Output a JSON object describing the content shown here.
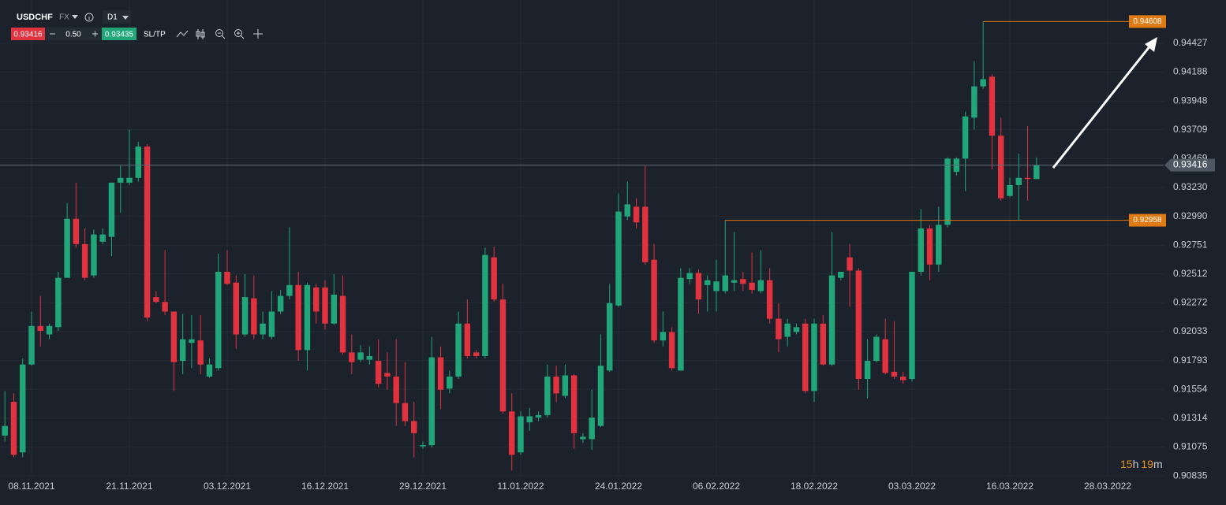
{
  "header": {
    "symbol": "USDCHF",
    "market": "FX",
    "timeframe": "D1",
    "bid": 0.93416,
    "spread": "0.50",
    "ask": 0.93435,
    "sltp": "SL/TP"
  },
  "countdown": [
    "15",
    "h",
    "19",
    "m"
  ],
  "chart_data": {
    "type": "candlestick",
    "up_color": "#21a67a",
    "down_color": "#e0323f",
    "grid": true,
    "x": [
      0,
      1,
      2,
      3,
      4,
      5,
      6,
      7,
      8,
      9,
      10,
      11,
      12,
      13,
      14,
      15,
      16,
      17,
      18,
      19,
      20,
      21,
      22,
      23,
      24,
      25,
      26,
      27,
      28,
      29,
      30,
      31,
      32,
      33,
      34,
      35,
      36,
      37,
      38,
      39,
      40,
      41,
      42,
      43,
      44,
      45,
      46,
      47,
      48,
      49,
      50,
      51,
      52,
      53,
      54,
      55,
      56,
      57,
      58,
      59,
      60,
      61,
      62,
      63,
      64,
      65,
      66,
      67,
      68,
      69,
      70,
      71,
      72,
      73,
      74,
      75,
      76,
      77,
      78,
      79,
      80,
      81,
      82,
      83,
      84,
      85,
      86,
      87,
      88,
      89,
      90,
      91,
      92,
      93,
      94,
      95,
      96,
      97,
      98,
      99,
      100,
      101,
      102,
      103,
      104,
      105,
      106,
      107,
      108,
      109,
      110,
      111,
      112,
      113,
      114,
      115,
      116
    ],
    "open": [
      0.9117,
      0.9145,
      0.9103,
      0.9176,
      0.9208,
      0.9201,
      0.9207,
      0.9248,
      0.9297,
      0.9276,
      0.925,
      0.9278,
      0.9282,
      0.9327,
      0.9327,
      0.9331,
      0.9357,
      0.9232,
      0.9228,
      0.922,
      0.9179,
      0.9194,
      0.9196,
      0.9166,
      0.9173,
      0.9253,
      0.9244,
      0.9201,
      0.9231,
      0.9201,
      0.9199,
      0.922,
      0.9233,
      0.9242,
      0.9188,
      0.924,
      0.924,
      0.921,
      0.9233,
      0.9186,
      0.918,
      0.918,
      0.9179,
      0.9169,
      0.9166,
      0.9144,
      0.9129,
      0.9108,
      0.9109,
      0.9182,
      0.9156,
      0.9166,
      0.921,
      0.9186,
      0.9183,
      0.9265,
      0.923,
      0.9137,
      0.9103,
      0.9128,
      0.9132,
      0.9134,
      0.9166,
      0.915,
      0.9167,
      0.9114,
      0.9114,
      0.9125,
      0.9171,
      0.9225,
      0.9299,
      0.9307,
      0.9307,
      0.9263,
      0.9196,
      0.9203,
      0.9171,
      0.9247,
      0.9252,
      0.9242,
      0.9237,
      0.9237,
      0.9244,
      0.9247,
      0.9244,
      0.9237,
      0.9246,
      0.9214,
      0.9199,
      0.9203,
      0.921,
      0.9154,
      0.921,
      0.9176,
      0.9248,
      0.9265,
      0.9254,
      0.9164,
      0.9179,
      0.9197,
      0.917,
      0.9166,
      0.9164,
      0.9253,
      0.9289,
      0.9259,
      0.9292,
      0.9336,
      0.9347,
      0.9381,
      0.9407,
      0.9415,
      0.9366,
      0.9316,
      0.9325,
      0.9331,
      0.933
    ],
    "high": [
      0.9154,
      0.9152,
      0.9181,
      0.922,
      0.9233,
      0.921,
      0.9253,
      0.931,
      0.9327,
      0.9289,
      0.9288,
      0.9289,
      0.9327,
      0.9341,
      0.9371,
      0.9361,
      0.9359,
      0.9237,
      0.9271,
      0.922,
      0.9218,
      0.9217,
      0.9217,
      0.9181,
      0.9268,
      0.9271,
      0.925,
      0.9251,
      0.925,
      0.922,
      0.9237,
      0.9238,
      0.929,
      0.9253,
      0.9244,
      0.9243,
      0.9246,
      0.9251,
      0.925,
      0.9201,
      0.9192,
      0.9191,
      0.9197,
      0.9186,
      0.9197,
      0.9178,
      0.9145,
      0.9112,
      0.9199,
      0.9191,
      0.9171,
      0.922,
      0.923,
      0.9188,
      0.9273,
      0.9274,
      0.9243,
      0.9152,
      0.9137,
      0.914,
      0.9137,
      0.9176,
      0.9175,
      0.9176,
      0.9168,
      0.9119,
      0.9155,
      0.9201,
      0.9243,
      0.9318,
      0.9328,
      0.9314,
      0.9341,
      0.9276,
      0.922,
      0.9207,
      0.9256,
      0.9256,
      0.9255,
      0.925,
      0.9263,
      0.92958,
      0.9286,
      0.9253,
      0.9269,
      0.9271,
      0.9256,
      0.9227,
      0.9214,
      0.921,
      0.9214,
      0.9214,
      0.9217,
      0.9286,
      0.9253,
      0.9276,
      0.9256,
      0.9197,
      0.9201,
      0.9214,
      0.9212,
      0.917,
      0.9253,
      0.9305,
      0.9292,
      0.9307,
      0.9348,
      0.9348,
      0.9386,
      0.9428,
      0.94608,
      0.9417,
      0.9381,
      0.9331,
      0.9351,
      0.9374,
      0.9348
    ],
    "low": [
      0.9112,
      0.9099,
      0.9099,
      0.9175,
      0.9191,
      0.9197,
      0.9204,
      0.9248,
      0.9273,
      0.9246,
      0.9248,
      0.9276,
      0.9266,
      0.9302,
      0.9325,
      0.9328,
      0.9212,
      0.9227,
      0.9217,
      0.9154,
      0.9168,
      0.9173,
      0.9168,
      0.9165,
      0.9171,
      0.9242,
      0.9189,
      0.9199,
      0.9197,
      0.9197,
      0.9197,
      0.9218,
      0.923,
      0.9179,
      0.9171,
      0.921,
      0.9205,
      0.9209,
      0.9184,
      0.9168,
      0.9178,
      0.9176,
      0.9157,
      0.9155,
      0.9125,
      0.9125,
      0.9099,
      0.9106,
      0.9107,
      0.9139,
      0.9152,
      0.9164,
      0.9181,
      0.9181,
      0.9181,
      0.9228,
      0.9135,
      0.9088,
      0.9101,
      0.9121,
      0.9129,
      0.9132,
      0.9145,
      0.9148,
      0.9106,
      0.9111,
      0.9105,
      0.9124,
      0.917,
      0.9224,
      0.9296,
      0.9289,
      0.9259,
      0.9194,
      0.9191,
      0.9171,
      0.9171,
      0.9243,
      0.9218,
      0.922,
      0.922,
      0.9235,
      0.9237,
      0.9237,
      0.9235,
      0.9235,
      0.921,
      0.9186,
      0.9191,
      0.9201,
      0.9152,
      0.9145,
      0.9175,
      0.9175,
      0.9246,
      0.9224,
      0.9155,
      0.9148,
      0.9178,
      0.9168,
      0.9164,
      0.916,
      0.9162,
      0.925,
      0.9246,
      0.9253,
      0.929,
      0.9333,
      0.932,
      0.9371,
      0.9405,
      0.9338,
      0.9312,
      0.9315,
      0.92958,
      0.9312,
      0.933
    ],
    "close": [
      0.9125,
      0.9101,
      0.9176,
      0.9208,
      0.9204,
      0.9208,
      0.9248,
      0.9297,
      0.9276,
      0.9248,
      0.9284,
      0.9284,
      0.9327,
      0.9331,
      0.9331,
      0.9357,
      0.9215,
      0.9228,
      0.922,
      0.9178,
      0.9197,
      0.9197,
      0.9176,
      0.9176,
      0.9253,
      0.9243,
      0.9201,
      0.9232,
      0.9201,
      0.921,
      0.922,
      0.9233,
      0.9242,
      0.9188,
      0.9242,
      0.922,
      0.921,
      0.9234,
      0.9186,
      0.9178,
      0.9186,
      0.9183,
      0.916,
      0.9166,
      0.9144,
      0.9129,
      0.9119,
      0.9109,
      0.9182,
      0.9155,
      0.9166,
      0.921,
      0.9183,
      0.9183,
      0.9267,
      0.923,
      0.9137,
      0.9101,
      0.9133,
      0.9133,
      0.9134,
      0.9166,
      0.9152,
      0.9167,
      0.9119,
      0.9116,
      0.9132,
      0.9175,
      0.9227,
      0.9303,
      0.9309,
      0.9294,
      0.9261,
      0.9196,
      0.9203,
      0.9173,
      0.9248,
      0.9252,
      0.923,
      0.9246,
      0.9245,
      0.925,
      0.9246,
      0.9243,
      0.9238,
      0.9246,
      0.9214,
      0.9197,
      0.921,
      0.9207,
      0.9154,
      0.921,
      0.9176,
      0.925,
      0.9253,
      0.9254,
      0.9164,
      0.9179,
      0.9199,
      0.9169,
      0.9166,
      0.9163,
      0.9253,
      0.9289,
      0.9259,
      0.9292,
      0.9347,
      0.9347,
      0.9382,
      0.9407,
      0.9413,
      0.9366,
      0.9314,
      0.9325,
      0.9331,
      0.933,
      0.93416
    ],
    "xlim": [
      -0.55,
      130.3
    ],
    "xticks": [
      {
        "value": 3,
        "label": "08.11.2021"
      },
      {
        "value": 14,
        "label": "21.11.2021"
      },
      {
        "value": 25,
        "label": "03.12.2021"
      },
      {
        "value": 36,
        "label": "16.12.2021"
      },
      {
        "value": 47,
        "label": "29.12.2021"
      },
      {
        "value": 58,
        "label": "11.01.2022"
      },
      {
        "value": 69,
        "label": "24.01.2022"
      },
      {
        "value": 80,
        "label": "06.02.2022"
      },
      {
        "value": 91,
        "label": "18.02.2022"
      },
      {
        "value": 102,
        "label": "03.03.2022"
      },
      {
        "value": 113,
        "label": "16.03.2022"
      },
      {
        "value": 124,
        "label": "28.03.2022"
      }
    ],
    "ylim": [
      0.90829,
      0.94787
    ],
    "yticks": [
      0.94427,
      0.94188,
      0.93948,
      0.93709,
      0.93469,
      {
        "value": 0.9323,
        "label": "0.93230"
      },
      {
        "value": 0.9299,
        "label": "0.92990"
      },
      0.92751,
      0.92512,
      0.92272,
      0.92033,
      0.91793,
      0.91554,
      0.91314,
      0.91075,
      0.90835
    ],
    "current_price": {
      "value": 0.93416,
      "color": "#4d5864"
    },
    "price_lines": [
      {
        "value": 0.94608,
        "from_x": 110,
        "color": "#e07a12"
      },
      {
        "value": 0.92958,
        "from_x": 81,
        "color": "#e07a12"
      }
    ]
  }
}
